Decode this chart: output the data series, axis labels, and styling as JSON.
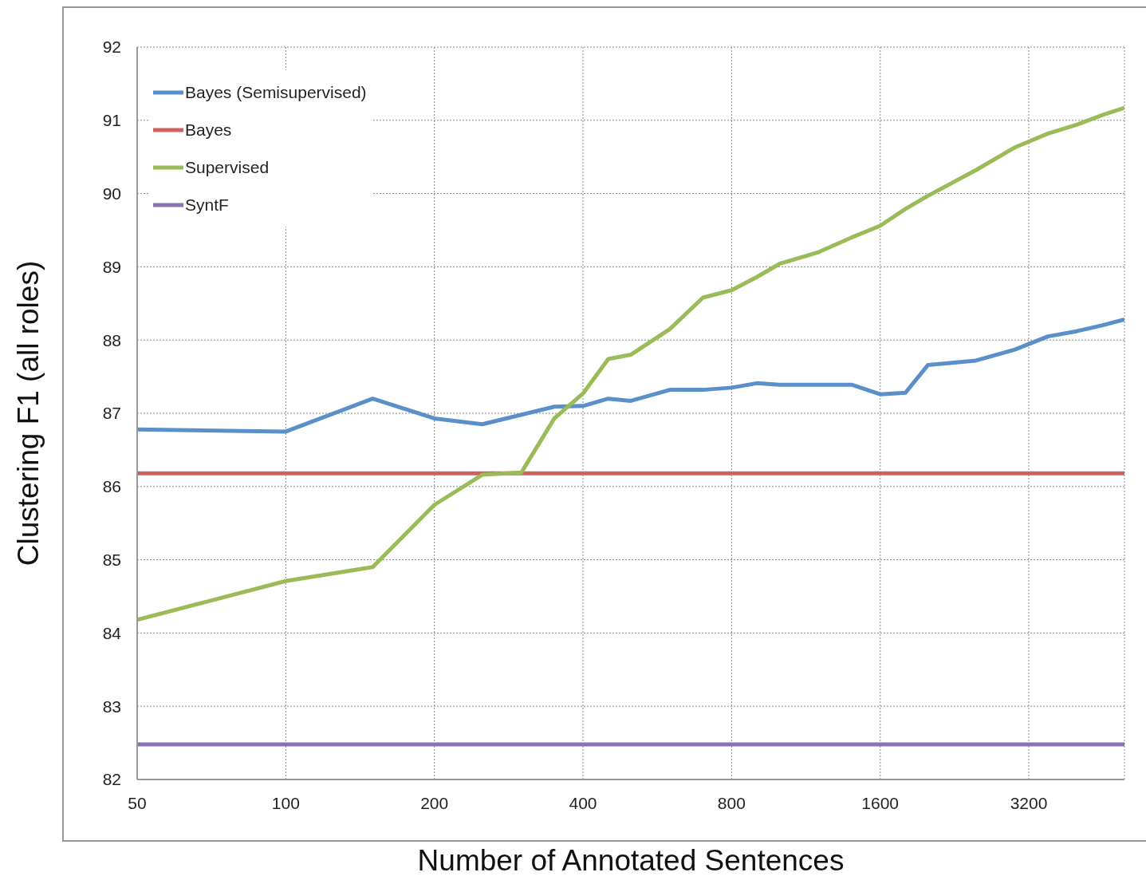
{
  "chart_data": {
    "type": "line",
    "xlabel": "Number of Annotated Sentences",
    "ylabel": "Clustering F1  (all roles)",
    "log": "x",
    "xlim": [
      50,
      5000
    ],
    "xticks": [
      50,
      100,
      200,
      400,
      800,
      1600,
      3200
    ],
    "ylim": [
      82,
      92
    ],
    "yticks": [
      82,
      83,
      84,
      85,
      86,
      87,
      88,
      89,
      90,
      91,
      92
    ],
    "grid": true,
    "legend": "top left",
    "marker": "none",
    "line_style": "solid",
    "series": [
      {
        "name": "Bayes (Semisupervised)",
        "color": "#5b8fca",
        "x": [
          50,
          100,
          150,
          200,
          250,
          350,
          400,
          450,
          500,
          600,
          700,
          800,
          900,
          1000,
          1400,
          1600,
          1800,
          2000,
          2500,
          3000,
          3500,
          4000,
          4500,
          5000
        ],
        "values": [
          86.78,
          86.75,
          87.2,
          86.93,
          86.85,
          87.09,
          87.1,
          87.2,
          87.17,
          87.32,
          87.32,
          87.35,
          87.41,
          87.39,
          87.39,
          87.26,
          87.28,
          87.66,
          87.72,
          87.87,
          88.05,
          88.12,
          88.2,
          88.28
        ]
      },
      {
        "name": "Bayes",
        "color": "#d0605c",
        "x": [
          50,
          5000
        ],
        "values": [
          86.18,
          86.18
        ]
      },
      {
        "name": "Supervised",
        "color": "#9bbb59",
        "x": [
          50,
          100,
          150,
          200,
          250,
          300,
          350,
          400,
          450,
          500,
          600,
          700,
          800,
          900,
          1000,
          1200,
          1400,
          1600,
          1800,
          2000,
          2500,
          3000,
          3500,
          4000,
          4500,
          5000
        ],
        "values": [
          84.18,
          84.71,
          84.9,
          85.75,
          86.16,
          86.19,
          86.93,
          87.27,
          87.74,
          87.8,
          88.15,
          88.58,
          88.68,
          88.86,
          89.04,
          89.2,
          89.4,
          89.56,
          89.79,
          89.97,
          90.32,
          90.63,
          90.82,
          90.94,
          91.07,
          91.17
        ]
      },
      {
        "name": "SyntF",
        "color": "#8c72b0",
        "x": [
          50,
          5000
        ],
        "values": [
          82.48,
          82.48
        ]
      }
    ]
  }
}
